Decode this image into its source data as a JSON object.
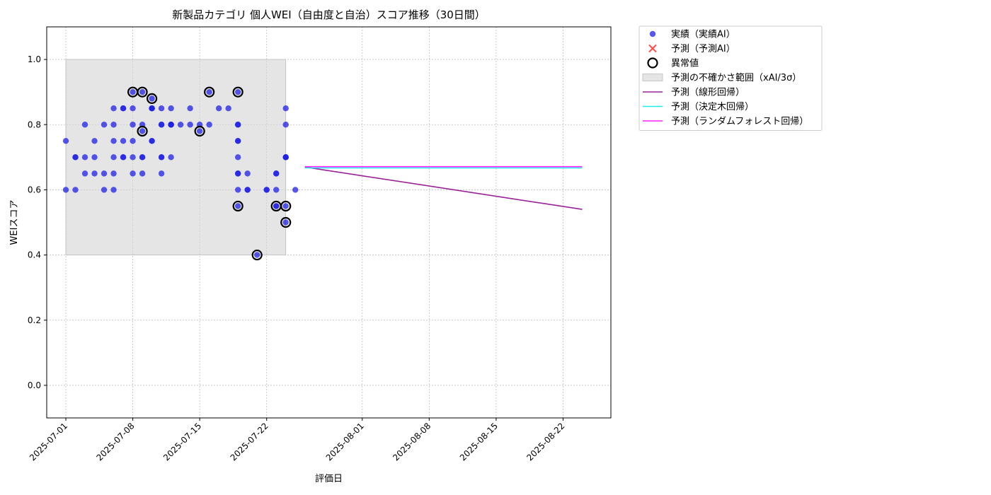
{
  "chart_data": {
    "type": "scatter",
    "title": "新製品カテゴリ 個人WEI（自由度と自治）スコア推移（30日間）",
    "xlabel": "評価日",
    "ylabel": "WEIスコア",
    "x_axis_kind": "date",
    "xlim": [
      "2025-06-29",
      "2025-08-27"
    ],
    "ylim": [
      -0.1,
      1.1
    ],
    "x_ticks": [
      "2025-07-01",
      "2025-07-08",
      "2025-07-15",
      "2025-07-22",
      "2025-08-01",
      "2025-08-08",
      "2025-08-15",
      "2025-08-22"
    ],
    "y_ticks": [
      "0.0",
      "0.2",
      "0.4",
      "0.6",
      "0.8",
      "1.0"
    ],
    "grid": true,
    "legend_position": "outside-top-right",
    "colors": {
      "actual": "#1f1fe6",
      "predicted": "#ff2020",
      "anomaly": "#000000",
      "band": "#d3d3d3",
      "linear": "#992299",
      "tree": "#22eeee",
      "forest": "#ff22ff"
    },
    "legend": [
      {
        "key": "actual",
        "label": "実績（実績AI）"
      },
      {
        "key": "predicted",
        "label": "予測（予測AI）"
      },
      {
        "key": "anomaly",
        "label": "異常値"
      },
      {
        "key": "band",
        "label": "予測の不確かさ範囲（xAI/3σ）"
      },
      {
        "key": "linear",
        "label": "予測（線形回帰）"
      },
      {
        "key": "tree",
        "label": "予測（決定木回帰）"
      },
      {
        "key": "forest",
        "label": "予測（ランダムフォレスト回帰）"
      }
    ],
    "uncertainty_band": {
      "x_start": "2025-07-01",
      "x_end": "2025-07-24",
      "y_low": 0.4,
      "y_high": 1.0
    },
    "actual_points": [
      {
        "x": "2025-07-01",
        "y": 0.75
      },
      {
        "x": "2025-07-01",
        "y": 0.6
      },
      {
        "x": "2025-07-02",
        "y": 0.7
      },
      {
        "x": "2025-07-02",
        "y": 0.7
      },
      {
        "x": "2025-07-02",
        "y": 0.6
      },
      {
        "x": "2025-07-03",
        "y": 0.8
      },
      {
        "x": "2025-07-03",
        "y": 0.7
      },
      {
        "x": "2025-07-03",
        "y": 0.65
      },
      {
        "x": "2025-07-04",
        "y": 0.7
      },
      {
        "x": "2025-07-04",
        "y": 0.75
      },
      {
        "x": "2025-07-04",
        "y": 0.65
      },
      {
        "x": "2025-07-05",
        "y": 0.65
      },
      {
        "x": "2025-07-05",
        "y": 0.8
      },
      {
        "x": "2025-07-05",
        "y": 0.6
      },
      {
        "x": "2025-07-06",
        "y": 0.65
      },
      {
        "x": "2025-07-06",
        "y": 0.6
      },
      {
        "x": "2025-07-06",
        "y": 0.75
      },
      {
        "x": "2025-07-06",
        "y": 0.85
      },
      {
        "x": "2025-07-06",
        "y": 0.8
      },
      {
        "x": "2025-07-06",
        "y": 0.7
      },
      {
        "x": "2025-07-07",
        "y": 0.7
      },
      {
        "x": "2025-07-07",
        "y": 0.75
      },
      {
        "x": "2025-07-07",
        "y": 0.85
      },
      {
        "x": "2025-07-07",
        "y": 0.85
      },
      {
        "x": "2025-07-07",
        "y": 0.7
      },
      {
        "x": "2025-07-08",
        "y": 0.8
      },
      {
        "x": "2025-07-08",
        "y": 0.65
      },
      {
        "x": "2025-07-08",
        "y": 0.85
      },
      {
        "x": "2025-07-08",
        "y": 0.7
      },
      {
        "x": "2025-07-08",
        "y": 0.9
      },
      {
        "x": "2025-07-08",
        "y": 0.75
      },
      {
        "x": "2025-07-09",
        "y": 0.9
      },
      {
        "x": "2025-07-09",
        "y": 0.78
      },
      {
        "x": "2025-07-09",
        "y": 0.8
      },
      {
        "x": "2025-07-09",
        "y": 0.7
      },
      {
        "x": "2025-07-09",
        "y": 0.65
      },
      {
        "x": "2025-07-09",
        "y": 0.7
      },
      {
        "x": "2025-07-10",
        "y": 0.88
      },
      {
        "x": "2025-07-10",
        "y": 0.85
      },
      {
        "x": "2025-07-10",
        "y": 0.85
      },
      {
        "x": "2025-07-10",
        "y": 0.75
      },
      {
        "x": "2025-07-10",
        "y": 0.75
      },
      {
        "x": "2025-07-10",
        "y": 0.85
      },
      {
        "x": "2025-07-11",
        "y": 0.8
      },
      {
        "x": "2025-07-11",
        "y": 0.85
      },
      {
        "x": "2025-07-11",
        "y": 0.8
      },
      {
        "x": "2025-07-11",
        "y": 0.7
      },
      {
        "x": "2025-07-11",
        "y": 0.65
      },
      {
        "x": "2025-07-11",
        "y": 0.7
      },
      {
        "x": "2025-07-12",
        "y": 0.85
      },
      {
        "x": "2025-07-12",
        "y": 0.7
      },
      {
        "x": "2025-07-12",
        "y": 0.8
      },
      {
        "x": "2025-07-12",
        "y": 0.8
      },
      {
        "x": "2025-07-12",
        "y": 0.8
      },
      {
        "x": "2025-07-13",
        "y": 0.8
      },
      {
        "x": "2025-07-14",
        "y": 0.85
      },
      {
        "x": "2025-07-14",
        "y": 0.8
      },
      {
        "x": "2025-07-15",
        "y": 0.8
      },
      {
        "x": "2025-07-15",
        "y": 0.78
      },
      {
        "x": "2025-07-16",
        "y": 0.9
      },
      {
        "x": "2025-07-16",
        "y": 0.8
      },
      {
        "x": "2025-07-17",
        "y": 0.85
      },
      {
        "x": "2025-07-18",
        "y": 0.85
      },
      {
        "x": "2025-07-19",
        "y": 0.8
      },
      {
        "x": "2025-07-19",
        "y": 0.9
      },
      {
        "x": "2025-07-19",
        "y": 0.8
      },
      {
        "x": "2025-07-19",
        "y": 0.75
      },
      {
        "x": "2025-07-19",
        "y": 0.75
      },
      {
        "x": "2025-07-19",
        "y": 0.7
      },
      {
        "x": "2025-07-19",
        "y": 0.65
      },
      {
        "x": "2025-07-19",
        "y": 0.65
      },
      {
        "x": "2025-07-19",
        "y": 0.6
      },
      {
        "x": "2025-07-19",
        "y": 0.55
      },
      {
        "x": "2025-07-20",
        "y": 0.65
      },
      {
        "x": "2025-07-20",
        "y": 0.6
      },
      {
        "x": "2025-07-20",
        "y": 0.6
      },
      {
        "x": "2025-07-21",
        "y": 0.4
      },
      {
        "x": "2025-07-22",
        "y": 0.6
      },
      {
        "x": "2025-07-22",
        "y": 0.6
      },
      {
        "x": "2025-07-23",
        "y": 0.65
      },
      {
        "x": "2025-07-23",
        "y": 0.6
      },
      {
        "x": "2025-07-23",
        "y": 0.65
      },
      {
        "x": "2025-07-23",
        "y": 0.55
      },
      {
        "x": "2025-07-23",
        "y": 0.55
      },
      {
        "x": "2025-07-24",
        "y": 0.55
      },
      {
        "x": "2025-07-24",
        "y": 0.5
      },
      {
        "x": "2025-07-24",
        "y": 0.85
      },
      {
        "x": "2025-07-24",
        "y": 0.8
      },
      {
        "x": "2025-07-24",
        "y": 0.7
      },
      {
        "x": "2025-07-24",
        "y": 0.7
      },
      {
        "x": "2025-07-24",
        "y": 0.7
      },
      {
        "x": "2025-07-25",
        "y": 0.6
      }
    ],
    "anomaly_points": [
      {
        "x": "2025-07-08",
        "y": 0.9
      },
      {
        "x": "2025-07-09",
        "y": 0.9
      },
      {
        "x": "2025-07-09",
        "y": 0.78
      },
      {
        "x": "2025-07-10",
        "y": 0.88
      },
      {
        "x": "2025-07-15",
        "y": 0.78
      },
      {
        "x": "2025-07-16",
        "y": 0.9
      },
      {
        "x": "2025-07-19",
        "y": 0.9
      },
      {
        "x": "2025-07-19",
        "y": 0.55
      },
      {
        "x": "2025-07-21",
        "y": 0.4
      },
      {
        "x": "2025-07-23",
        "y": 0.55
      },
      {
        "x": "2025-07-24",
        "y": 0.55
      },
      {
        "x": "2025-07-24",
        "y": 0.5
      }
    ],
    "predicted_points": [],
    "series": [
      {
        "key": "linear",
        "name": "予測（線形回帰）",
        "points": [
          {
            "x": "2025-07-26",
            "y": 0.67
          },
          {
            "x": "2025-08-24",
            "y": 0.54
          }
        ]
      },
      {
        "key": "tree",
        "name": "予測（決定木回帰）",
        "points": [
          {
            "x": "2025-07-26",
            "y": 0.667
          },
          {
            "x": "2025-08-24",
            "y": 0.667
          }
        ]
      },
      {
        "key": "forest",
        "name": "予測（ランダムフォレスト回帰）",
        "points": [
          {
            "x": "2025-07-26",
            "y": 0.671
          },
          {
            "x": "2025-08-24",
            "y": 0.671
          }
        ]
      }
    ]
  }
}
